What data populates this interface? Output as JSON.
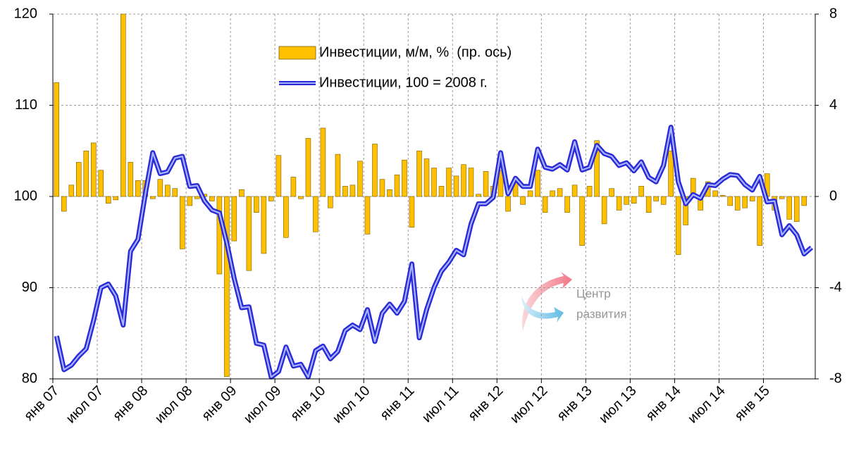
{
  "chart_data": {
    "type": "bar_line",
    "categories": [
      "янв 07",
      null,
      null,
      null,
      null,
      null,
      "июл 07",
      null,
      null,
      null,
      null,
      null,
      "янв 08",
      null,
      null,
      null,
      null,
      null,
      "июл 08",
      null,
      null,
      null,
      null,
      null,
      "янв 09",
      null,
      null,
      null,
      null,
      null,
      "июл 09",
      null,
      null,
      null,
      null,
      null,
      "янв 10",
      null,
      null,
      null,
      null,
      null,
      "июл 10",
      null,
      null,
      null,
      null,
      null,
      "янв 11",
      null,
      null,
      null,
      null,
      null,
      "июл 11",
      null,
      null,
      null,
      null,
      null,
      "янв 12",
      null,
      null,
      null,
      null,
      null,
      "июл 12",
      null,
      null,
      null,
      null,
      null,
      "янв 13",
      null,
      null,
      null,
      null,
      null,
      "июл 13",
      null,
      null,
      null,
      null,
      null,
      "янв 14",
      null,
      null,
      null,
      null,
      null,
      "июл 14",
      null,
      null,
      null,
      null,
      null,
      "янв 15",
      null,
      null,
      null,
      null,
      null,
      null
    ],
    "series": [
      {
        "name": "Инвестиции, м/м, %  (пр. ось)",
        "type": "bar",
        "axis": "y2",
        "color": "#ffc000",
        "values": [
          5.0,
          -0.65,
          0.5,
          1.5,
          2.0,
          2.35,
          1.15,
          -0.3,
          -0.15,
          8,
          1.5,
          0.7,
          0.7,
          -0.1,
          0.75,
          0.5,
          0.35,
          -2.3,
          -0.4,
          -0.1,
          0.1,
          -0.2,
          -3.4,
          -7.9,
          -1.95,
          0.3,
          -3.25,
          -0.7,
          -2.5,
          -0.2,
          1.8,
          -1.8,
          0.85,
          -0.1,
          2.55,
          -1.55,
          3.0,
          -0.5,
          1.85,
          0.45,
          0.5,
          1.55,
          -1.65,
          2.3,
          0.75,
          0.3,
          0.95,
          1.6,
          -1.35,
          2.0,
          1.65,
          1.25,
          0.45,
          1.25,
          0.9,
          1.4,
          1.25,
          0.1,
          1.1,
          0.45,
          1.15,
          -0.65,
          0.8,
          -0.35,
          0.25,
          1.15,
          -0.7,
          0.25,
          0.35,
          -0.7,
          0.5,
          -2.15,
          0.45,
          2.45,
          -1.2,
          0.35,
          -0.6,
          -0.35,
          -0.3,
          0.45,
          -0.7,
          -0.2,
          -0.35,
          2.0,
          -2.55,
          -1.25,
          0.8,
          -0.6,
          0.65,
          0.25,
          0.05,
          -0.4,
          -0.6,
          -0.5,
          -0.2,
          -2.15,
          1.0,
          -0.6,
          -0.1,
          -1.0,
          -1.1,
          -0.4,
          0
        ]
      },
      {
        "name": "Инвестиции, 100 = 2008 г.",
        "type": "line",
        "axis": "y",
        "color": "#2a2ad8",
        "values": [
          84.7,
          81,
          81.5,
          82.5,
          83.3,
          86.4,
          90,
          90.4,
          89.1,
          85.9,
          94,
          95.3,
          100.3,
          104.8,
          102.5,
          102.7,
          104.2,
          104.4,
          101.1,
          101.2,
          99.5,
          98.5,
          98.2,
          94.9,
          91,
          87.8,
          87.9,
          83.9,
          83.7,
          80.2,
          80.8,
          83.5,
          81.4,
          81.6,
          80.2,
          83.1,
          83.6,
          82.2,
          83,
          85.3,
          85.9,
          85.4,
          87.6,
          84.1,
          87.2,
          88.2,
          87.2,
          88.5,
          92.6,
          84.5,
          87.6,
          90,
          91.8,
          92.8,
          94.1,
          93.6,
          97,
          99.2,
          99.2,
          99.9,
          104.8,
          100.3,
          102,
          101.1,
          101.1,
          105.2,
          103.2,
          103,
          103.5,
          102.9,
          106,
          102.9,
          103.2,
          105.6,
          104.7,
          104.4,
          103.4,
          103.7,
          102.8,
          103.8,
          102.1,
          101.6,
          103.4,
          107.6,
          101.6,
          99.2,
          100.2,
          99.8,
          101.3,
          101.2,
          101.9,
          102.4,
          102.3,
          101.3,
          100.7,
          102.2,
          99.4,
          99.5,
          95.8,
          96.8,
          95.8,
          93.7,
          94.4
        ]
      }
    ],
    "ylim": [
      80,
      120
    ],
    "yticks": [
      80,
      90,
      100,
      110,
      120
    ],
    "y2lim": [
      -8,
      8
    ],
    "y2ticks": [
      -8,
      -4,
      0,
      4,
      8
    ],
    "grid": true,
    "watermark": [
      "Центр",
      "развития"
    ]
  }
}
